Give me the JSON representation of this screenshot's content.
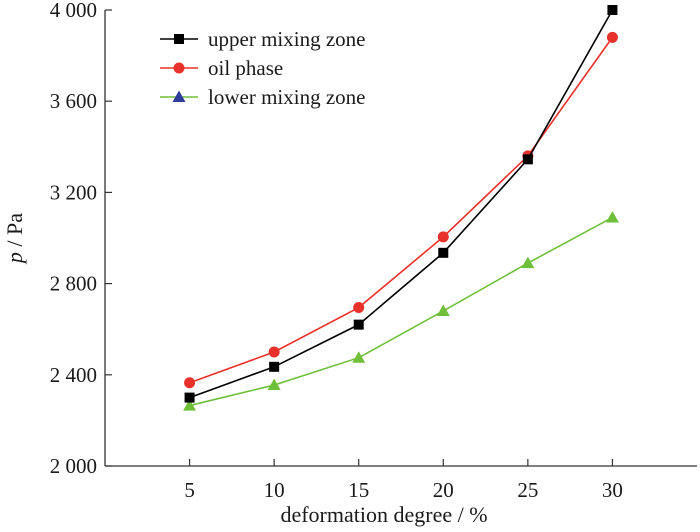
{
  "chart_data": {
    "type": "line",
    "title": "",
    "xlabel": "deformation degree / %",
    "ylabel_italic": "p",
    "ylabel_rest": " / Pa",
    "x": [
      5,
      10,
      15,
      20,
      25,
      30
    ],
    "xlim": [
      0,
      35
    ],
    "ylim": [
      2000,
      4000
    ],
    "x_ticks": [
      5,
      10,
      15,
      20,
      25,
      30
    ],
    "x_tick_labels": [
      "5",
      "10",
      "15",
      "20",
      "25",
      "30"
    ],
    "y_ticks": [
      2000,
      2400,
      2800,
      3200,
      3600,
      4000
    ],
    "y_tick_labels": [
      "2 000",
      "2 400",
      "2 800",
      "3 200",
      "3 600",
      "4 000"
    ],
    "grid": false,
    "legend_position": "top-left",
    "series": [
      {
        "name": "upper mixing zone",
        "values": [
          2300,
          2435,
          2620,
          2935,
          3345,
          4000
        ],
        "line_color": "#000000",
        "marker_color": "#000000",
        "marker": "square"
      },
      {
        "name": "oil phase",
        "values": [
          2365,
          2500,
          2695,
          3005,
          3360,
          3880
        ],
        "line_color": "#e8312a",
        "marker_color": "#e8312a",
        "marker": "circle"
      },
      {
        "name": "lower mixing zone",
        "values": [
          2265,
          2355,
          2475,
          2680,
          2890,
          3090
        ],
        "line_color": "#6fbf3a",
        "marker_color": "#6fbf3a",
        "legend_marker_color": "#2f3d9a",
        "marker": "triangle"
      }
    ]
  }
}
